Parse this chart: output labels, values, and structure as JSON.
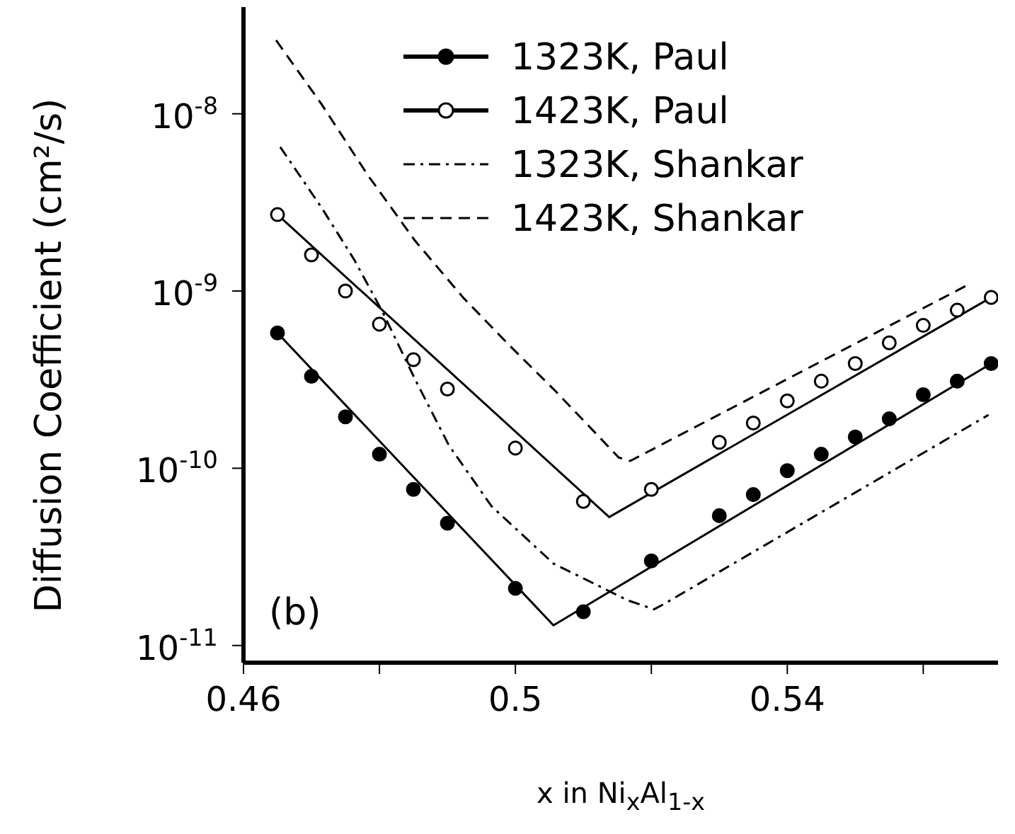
{
  "chart_data": {
    "type": "line",
    "xlabel": "x in Ni$_{x}$Al$_{1-x}$",
    "ylabel": "Diffusion Coefficient (cm²/s)",
    "annotations": [
      "(b)"
    ],
    "log": "y",
    "grid": false,
    "legend": "top right",
    "xlim": [
      0.46,
      0.571
    ],
    "xticks": [
      0.46,
      {
        "value": 0.48,
        "label": null
      },
      0.5,
      {
        "value": 0.52,
        "label": null
      },
      0.54,
      {
        "value": 0.56,
        "label": null
      }
    ],
    "ylim": [
      8e-12,
      4e-08
    ],
    "yticks": [
      {
        "value": 1e-11,
        "label": "10$^{-11}$"
      },
      {
        "value": 1e-10,
        "label": "10$^{-10}$"
      },
      {
        "value": 1e-09,
        "label": "10$^{-9}$"
      },
      {
        "value": 1e-08,
        "label": "10$^{-8}$"
      }
    ],
    "series": [
      {
        "name": "1323K, Paul",
        "type": "scatter",
        "marker": "circle",
        "color": "#000000",
        "x": [
          0.465,
          0.47,
          0.475,
          0.48,
          0.485,
          0.49,
          0.5,
          0.51,
          0.52,
          0.53,
          0.535,
          0.54,
          0.545,
          0.55,
          0.555,
          0.56,
          0.565,
          0.57
        ],
        "values": [
          5.8e-10,
          3.3e-10,
          1.95e-10,
          1.2e-10,
          7.6e-11,
          4.9e-11,
          2.1e-11,
          1.55e-11,
          3e-11,
          5.4e-11,
          7.1e-11,
          9.7e-11,
          1.2e-10,
          1.5e-10,
          1.9e-10,
          2.6e-10,
          3.1e-10,
          3.9e-10
        ]
      },
      {
        "name": "1423K, Paul",
        "type": "scatter",
        "marker": "open-circle",
        "color": "#000000",
        "x": [
          0.465,
          0.47,
          0.475,
          0.48,
          0.485,
          0.49,
          0.5,
          0.51,
          0.52,
          0.53,
          0.535,
          0.54,
          0.545,
          0.55,
          0.555,
          0.56,
          0.565,
          0.57
        ],
        "values": [
          2.7e-09,
          1.6e-09,
          1e-09,
          6.5e-10,
          4.1e-10,
          2.8e-10,
          1.3e-10,
          6.5e-11,
          7.6e-11,
          1.4e-10,
          1.8e-10,
          2.4e-10,
          3.1e-10,
          3.9e-10,
          5.1e-10,
          6.4e-10,
          7.8e-10,
          9.2e-10
        ]
      },
      {
        "line_style": "solid",
        "marker": "none",
        "color": "#000000",
        "x": [
          0.465,
          0.5056,
          0.57
        ],
        "values": [
          5.8e-10,
          1.3e-11,
          3.9e-10
        ]
      },
      {
        "line_style": "solid",
        "marker": "none",
        "color": "#000000",
        "x": [
          0.465,
          0.5138,
          0.57
        ],
        "values": [
          2.7e-09,
          5.3e-11,
          9.2e-10
        ]
      },
      {
        "name": "1323K, Shankar",
        "line_style": "dashdot",
        "marker": "none",
        "color": "#000000",
        "x": [
          0.4654,
          0.4715,
          0.4763,
          0.4804,
          0.4852,
          0.4902,
          0.4965,
          0.5056,
          0.5165,
          0.5204,
          0.5217,
          0.5696
        ],
        "values": [
          6.5e-09,
          2.95e-09,
          1.5e-09,
          7.7e-10,
          3.2e-10,
          1.35e-10,
          6.1e-11,
          2.9e-11,
          1.8e-11,
          1.6e-11,
          1.7e-11,
          2e-10
        ]
      },
      {
        "name": "1423K, Shankar",
        "line_style": "dashed",
        "marker": "none",
        "color": "#000000",
        "x": [
          0.4648,
          0.4715,
          0.4783,
          0.4852,
          0.4923,
          0.4992,
          0.506,
          0.5152,
          0.5169,
          0.5669
        ],
        "values": [
          2.6e-08,
          1.13e-08,
          4.5e-09,
          1.93e-09,
          9.2e-10,
          4.9e-10,
          2.7e-10,
          1.15e-10,
          1.1e-10,
          1.1e-09
        ]
      }
    ]
  }
}
